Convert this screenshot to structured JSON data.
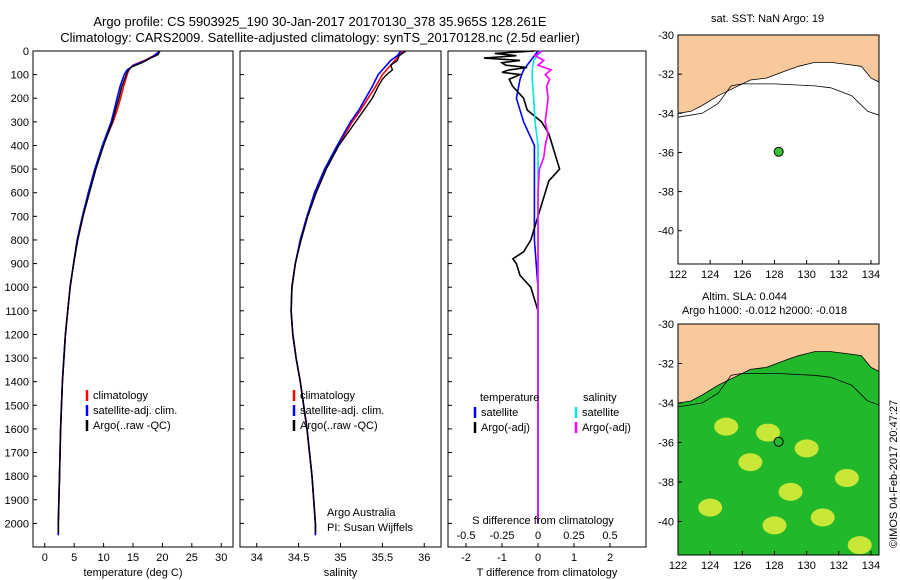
{
  "header": {
    "line1": "Argo profile: CS 5903925_190 30-Jan-2017 20170130_378 35.965S 128.261E",
    "line2": "Climatology: CARS2009. Satellite-adjusted climatology: synTS_20170128.nc (2.5d earlier)"
  },
  "map_top": {
    "title": "sat. SST: NaN Argo: 19",
    "x_ticks": [
      "122",
      "124",
      "126",
      "128",
      "130",
      "132",
      "134"
    ],
    "y_ticks": [
      "-30",
      "-32",
      "-34",
      "-36",
      "-38",
      "-40"
    ],
    "colors": {
      "land": "#f9c99e",
      "ocean": "#ffffff"
    }
  },
  "map_bottom": {
    "title1": "Altim. SLA: 0.044",
    "title2": "Argo h1000: -0.012 h2000: -0.018",
    "x_ticks": [
      "122",
      "124",
      "126",
      "128",
      "130",
      "132",
      "134"
    ],
    "y_ticks": [
      "-30",
      "-32",
      "-34",
      "-36",
      "-38",
      "-40"
    ],
    "colors": {
      "land": "#f9c99e",
      "sla_low": "#22b82c",
      "sla_high": "#e6ee3a"
    }
  },
  "credit": "©IMOS 04-Feb-2017 20:47:27",
  "colors": {
    "climatology": "#ff0000",
    "satellite": "#0000ff",
    "argo": "#000000",
    "satellite_s": "#00e5e5",
    "argo_s": "#ff00ff"
  },
  "chart_data": [
    {
      "type": "line",
      "xlabel": "temperature (deg C)",
      "ylabel": "",
      "xlim": [
        -2,
        32
      ],
      "ylim": [
        2100,
        0
      ],
      "x_ticks": [
        "0",
        "5",
        "10",
        "15",
        "20",
        "25",
        "30"
      ],
      "y_ticks": [
        "0",
        "100",
        "200",
        "300",
        "400",
        "500",
        "600",
        "700",
        "800",
        "900",
        "1000",
        "1100",
        "1200",
        "1300",
        "1400",
        "1500",
        "1600",
        "1700",
        "1800",
        "1900",
        "2000"
      ],
      "legend": [
        "climatology",
        "satellite-adj. clim.",
        "Argo(..raw -QC)"
      ],
      "series": [
        {
          "name": "climatology",
          "depth": [
            0,
            20,
            40,
            60,
            80,
            100,
            150,
            200,
            250,
            300,
            400,
            500,
            600,
            700,
            800,
            900,
            1000,
            1200,
            1400,
            1600,
            1800,
            2000,
            2050
          ],
          "values": [
            19.6,
            18.5,
            17.0,
            15.0,
            14.3,
            14.0,
            13.4,
            12.9,
            12.3,
            11.6,
            9.9,
            8.6,
            7.5,
            6.5,
            5.6,
            4.9,
            4.3,
            3.5,
            3.0,
            2.7,
            2.5,
            2.3,
            2.3
          ]
        },
        {
          "name": "satellite-adj. clim.",
          "depth": [
            0,
            20,
            40,
            60,
            80,
            100,
            150,
            200,
            250,
            300,
            400,
            500,
            600,
            700,
            800,
            900,
            1000,
            1200,
            1400,
            1600,
            1800,
            2000,
            2050
          ],
          "values": [
            19.6,
            18.6,
            17.2,
            15.2,
            14.0,
            13.5,
            12.8,
            12.3,
            11.8,
            11.3,
            9.8,
            8.5,
            7.4,
            6.4,
            5.5,
            4.9,
            4.3,
            3.5,
            3.0,
            2.7,
            2.5,
            2.3,
            2.3
          ]
        },
        {
          "name": "Argo(..raw -QC)",
          "depth": [
            0,
            15,
            30,
            50,
            70,
            90,
            110,
            150,
            200,
            250,
            300,
            400,
            500,
            600,
            700,
            800,
            900,
            1000,
            1200,
            1400,
            1600,
            1800,
            2000,
            2040
          ],
          "values": [
            19.5,
            19.3,
            18.0,
            16.5,
            14.6,
            14.0,
            13.7,
            13.1,
            12.6,
            12.0,
            11.5,
            10.0,
            8.7,
            7.6,
            6.5,
            5.6,
            4.9,
            4.3,
            3.5,
            3.0,
            2.7,
            2.5,
            2.3,
            2.3
          ]
        }
      ]
    },
    {
      "type": "line",
      "xlabel": "salinity",
      "xlim": [
        33.8,
        36.2
      ],
      "ylim": [
        2100,
        0
      ],
      "x_ticks": [
        "34",
        "34.5",
        "35",
        "35.5",
        "36"
      ],
      "legend": [
        "climatology",
        "satellite-adj. clim.",
        "Argo(..raw -QC)"
      ],
      "annotation": [
        "Argo Australia",
        "PI: Susan Wijffels"
      ],
      "series": [
        {
          "name": "climatology",
          "depth": [
            0,
            20,
            40,
            60,
            80,
            100,
            150,
            200,
            250,
            300,
            400,
            500,
            600,
            700,
            800,
            900,
            1000,
            1100,
            1200,
            1300,
            1400,
            1600,
            1800,
            2000,
            2050
          ],
          "values": [
            35.75,
            35.7,
            35.65,
            35.6,
            35.55,
            35.5,
            35.42,
            35.33,
            35.24,
            35.14,
            34.97,
            34.82,
            34.7,
            34.6,
            34.52,
            34.46,
            34.42,
            34.41,
            34.43,
            34.47,
            34.52,
            34.6,
            34.66,
            34.7,
            34.7
          ]
        },
        {
          "name": "satellite-adj. clim.",
          "depth": [
            0,
            20,
            40,
            60,
            80,
            100,
            150,
            200,
            250,
            300,
            400,
            500,
            600,
            700,
            800,
            900,
            1000,
            1100,
            1200,
            1300,
            1400,
            1600,
            1800,
            2000,
            2050
          ],
          "values": [
            35.72,
            35.68,
            35.6,
            35.55,
            35.5,
            35.45,
            35.38,
            35.3,
            35.22,
            35.12,
            34.96,
            34.81,
            34.69,
            34.6,
            34.52,
            34.46,
            34.42,
            34.41,
            34.43,
            34.47,
            34.52,
            34.6,
            34.66,
            34.7,
            34.7
          ]
        },
        {
          "name": "Argo(..raw -QC)",
          "depth": [
            0,
            20,
            40,
            60,
            80,
            100,
            120,
            150,
            200,
            250,
            300,
            400,
            500,
            600,
            700,
            800,
            900,
            1000,
            1100,
            1200,
            1300,
            1400,
            1600,
            1800,
            2000,
            2040
          ],
          "values": [
            35.78,
            35.7,
            35.68,
            35.6,
            35.62,
            35.55,
            35.5,
            35.45,
            35.38,
            35.28,
            35.18,
            34.98,
            34.83,
            34.71,
            34.61,
            34.53,
            34.46,
            34.42,
            34.41,
            34.43,
            34.47,
            34.52,
            34.6,
            34.66,
            34.7,
            34.7
          ]
        }
      ]
    },
    {
      "type": "line",
      "xlabel": "T difference from climatology",
      "x2label": "S difference from climatology",
      "xlim": [
        -2.5,
        3
      ],
      "ylim": [
        2100,
        0
      ],
      "x_ticks": [
        "-2",
        "-1",
        "0",
        "1",
        "2"
      ],
      "x2_ticks": [
        "-0.5",
        "-0.25",
        "0",
        "0.25",
        "0.5"
      ],
      "legend_title_t": "temperature",
      "legend_title_s": "salinity",
      "legend_t": [
        "satellite",
        "Argo(-adj)"
      ],
      "legend_s": [
        "satellite",
        "Argo(-adj)"
      ],
      "series": [
        {
          "name": "satellite",
          "depth": [
            0,
            40,
            80,
            120,
            200,
            300,
            400,
            500,
            600,
            800,
            1000,
            1200,
            1600,
            2000
          ],
          "values": [
            0.0,
            -0.2,
            -0.4,
            -0.5,
            -0.6,
            -0.4,
            -0.1,
            -0.1,
            -0.1,
            -0.1,
            0.0,
            0.0,
            0.0,
            0.0
          ]
        },
        {
          "name": "Argo(-adj)",
          "depth": [
            0,
            10,
            20,
            30,
            40,
            50,
            60,
            70,
            80,
            90,
            100,
            120,
            150,
            200,
            250,
            300,
            350,
            400,
            450,
            500,
            550,
            600,
            650,
            700,
            750,
            800,
            850,
            880,
            900,
            950,
            1000,
            1050,
            1100,
            1200,
            1400,
            1600,
            2000
          ],
          "values": [
            -0.1,
            -1.2,
            -0.6,
            -1.5,
            -0.5,
            -1.0,
            -0.9,
            -0.3,
            -0.8,
            -1.0,
            -0.5,
            -0.8,
            -0.7,
            -0.4,
            -0.3,
            0.1,
            0.3,
            0.4,
            0.5,
            0.6,
            0.3,
            0.2,
            0.1,
            0.0,
            -0.1,
            -0.2,
            -0.4,
            -0.7,
            -0.6,
            -0.5,
            -0.2,
            -0.1,
            0.0,
            0.0,
            0.0,
            0.0,
            0.0
          ]
        },
        {
          "name": "satellite (salinity)",
          "depth": [
            0,
            40,
            80,
            120,
            200,
            300,
            400,
            500,
            600,
            800,
            1000,
            1200,
            1600,
            2000
          ],
          "values": [
            0.02,
            -0.03,
            -0.04,
            -0.04,
            -0.03,
            -0.02,
            0.0,
            0.0,
            0.0,
            0.0,
            0.0,
            0.0,
            0.0,
            0.0
          ]
        },
        {
          "name": "Argo(-adj) (salinity)",
          "depth": [
            0,
            20,
            40,
            60,
            80,
            100,
            120,
            150,
            200,
            250,
            300,
            350,
            400,
            450,
            500,
            600,
            700,
            800,
            1000,
            1200,
            1600,
            2000
          ],
          "values": [
            0.03,
            -0.02,
            0.04,
            0.0,
            0.09,
            0.05,
            0.08,
            0.06,
            0.07,
            0.06,
            0.05,
            0.07,
            0.05,
            0.04,
            0.01,
            0.0,
            0.0,
            0.0,
            0.0,
            0.0,
            0.0,
            0.0
          ]
        }
      ]
    }
  ]
}
